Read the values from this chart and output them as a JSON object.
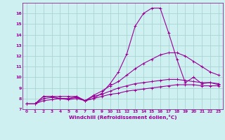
{
  "title": "",
  "xlabel": "Windchill (Refroidissement éolien,°C)",
  "background_color": "#cff0f0",
  "grid_color": "#aad4d4",
  "line_color": "#990099",
  "spine_color": "#7a007a",
  "xlim": [
    -0.5,
    23.5
  ],
  "ylim": [
    7,
    17
  ],
  "yticks": [
    7,
    8,
    9,
    10,
    11,
    12,
    13,
    14,
    15,
    16
  ],
  "xticks": [
    0,
    1,
    2,
    3,
    4,
    5,
    6,
    7,
    8,
    9,
    10,
    11,
    12,
    13,
    14,
    15,
    16,
    17,
    18,
    19,
    20,
    21,
    22,
    23
  ],
  "series": [
    [
      7.5,
      7.5,
      8.2,
      8.2,
      8.2,
      8.2,
      8.2,
      7.8,
      8.0,
      8.5,
      9.4,
      10.5,
      12.2,
      14.8,
      16.0,
      16.5,
      16.5,
      14.2,
      11.7,
      9.5,
      10.0,
      9.4,
      9.5,
      9.3
    ],
    [
      7.5,
      7.5,
      8.2,
      8.2,
      8.0,
      8.0,
      8.2,
      7.8,
      8.3,
      8.7,
      9.2,
      9.6,
      10.2,
      10.8,
      11.3,
      11.7,
      12.1,
      12.3,
      12.3,
      12.0,
      11.5,
      11.0,
      10.5,
      10.2
    ],
    [
      7.5,
      7.5,
      8.0,
      8.1,
      8.0,
      8.0,
      8.1,
      7.8,
      8.2,
      8.4,
      8.7,
      9.0,
      9.2,
      9.4,
      9.5,
      9.6,
      9.7,
      9.8,
      9.8,
      9.7,
      9.6,
      9.5,
      9.5,
      9.4
    ],
    [
      7.5,
      7.5,
      7.8,
      7.9,
      8.0,
      7.9,
      8.0,
      7.8,
      8.0,
      8.2,
      8.4,
      8.5,
      8.7,
      8.8,
      8.9,
      9.0,
      9.1,
      9.2,
      9.3,
      9.3,
      9.3,
      9.2,
      9.2,
      9.2
    ]
  ]
}
